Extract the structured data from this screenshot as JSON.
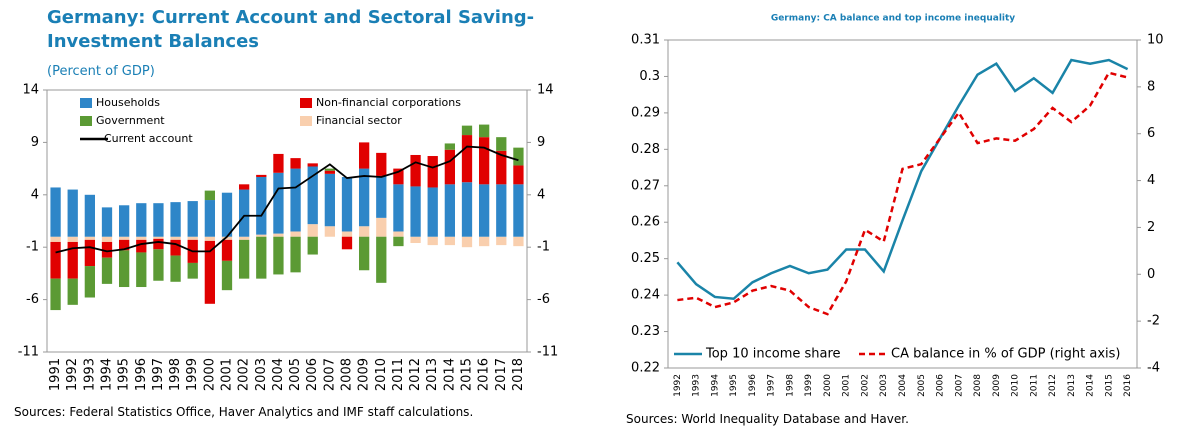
{
  "chart_data": [
    {
      "type": "bar",
      "stacked": true,
      "title": "Germany: Current Account and Sectoral Saving-Investment Balances",
      "subtitle": "(Percent of GDP)",
      "source": "Sources: Federal Statistics Office, Haver Analytics and IMF staff calculations.",
      "categories": [
        "1991",
        "1992",
        "1993",
        "1994",
        "1995",
        "1996",
        "1997",
        "1998",
        "1999",
        "2000",
        "2001",
        "2002",
        "2003",
        "2004",
        "2005",
        "2006",
        "2007",
        "2008",
        "2009",
        "2010",
        "2011",
        "2012",
        "2013",
        "2014",
        "2015",
        "2016",
        "2017",
        "2018"
      ],
      "series": [
        {
          "name": "Households",
          "color": "#2e86c8",
          "values": [
            4.7,
            4.5,
            4.0,
            2.8,
            3.0,
            3.2,
            3.2,
            3.3,
            3.4,
            3.5,
            4.2,
            4.5,
            5.5,
            5.8,
            6.0,
            5.5,
            5.0,
            5.2,
            5.5,
            4.0,
            4.5,
            4.8,
            4.7,
            5.0,
            5.2,
            5.0,
            5.0,
            5.0
          ]
        },
        {
          "name": "Non-financial corporations",
          "color": "#e00000",
          "values": [
            -3.5,
            -3.5,
            -2.5,
            -1.5,
            -1.0,
            -1.2,
            -1.0,
            -1.5,
            -2.2,
            -6.0,
            -2.0,
            0.5,
            0.2,
            1.8,
            1.0,
            0.3,
            0.3,
            -1.2,
            2.5,
            2.2,
            1.5,
            3.0,
            3.0,
            3.3,
            4.5,
            4.5,
            3.2,
            1.8
          ]
        },
        {
          "name": "Government",
          "color": "#5b9a34",
          "values": [
            -3.0,
            -2.5,
            -3.0,
            -2.5,
            -3.5,
            -3.3,
            -3.0,
            -2.5,
            -1.5,
            0.9,
            -2.8,
            -3.7,
            -4.0,
            -3.6,
            -3.4,
            -1.7,
            0.2,
            0.0,
            -3.2,
            -4.4,
            -0.9,
            0.0,
            0.0,
            0.6,
            0.9,
            1.2,
            1.3,
            1.7
          ]
        },
        {
          "name": "Financial sector",
          "color": "#f9cfae",
          "values": [
            -0.5,
            -0.5,
            -0.3,
            -0.5,
            -0.3,
            -0.3,
            -0.2,
            -0.3,
            -0.3,
            -0.4,
            -0.3,
            -0.3,
            0.2,
            0.3,
            0.5,
            1.2,
            1.0,
            0.5,
            1.0,
            1.8,
            0.5,
            -0.6,
            -0.8,
            -0.8,
            -1.0,
            -0.9,
            -0.8,
            -0.9
          ]
        },
        {
          "name": "Current account",
          "color": "#000000",
          "type": "line",
          "values": [
            -1.5,
            -1.1,
            -1.0,
            -1.4,
            -1.2,
            -0.7,
            -0.5,
            -0.7,
            -1.4,
            -1.4,
            0.0,
            2.0,
            2.0,
            4.6,
            4.7,
            5.8,
            6.9,
            5.6,
            5.8,
            5.7,
            6.2,
            7.1,
            6.6,
            7.2,
            8.6,
            8.5,
            7.8,
            7.3
          ]
        }
      ],
      "ylim": [
        -11,
        14
      ],
      "yticks": [
        -11,
        -6,
        -1,
        4,
        9,
        14
      ],
      "y2lim": [
        -11,
        14
      ],
      "y2ticks": [
        -11,
        -6,
        -1,
        4,
        9,
        14
      ],
      "legend": "upper left"
    },
    {
      "type": "line",
      "title": "Germany: CA balance and top income inequality",
      "source": "Sources: World Inequality Database and Haver.",
      "categories": [
        "1992",
        "1993",
        "1994",
        "1995",
        "1996",
        "1997",
        "1998",
        "1999",
        "2000",
        "2001",
        "2002",
        "2003",
        "2004",
        "2005",
        "2006",
        "2007",
        "2008",
        "2009",
        "2010",
        "2011",
        "2012",
        "2013",
        "2014",
        "2015",
        "2016"
      ],
      "series": [
        {
          "name": "Top 10 income share",
          "color": "#1a84a8",
          "values": [
            0.249,
            0.243,
            0.2395,
            0.239,
            0.2435,
            0.246,
            0.248,
            0.246,
            0.247,
            0.2525,
            0.2525,
            0.2465,
            0.2605,
            0.274,
            0.283,
            0.292,
            0.3005,
            0.3035,
            0.296,
            0.2995,
            0.2955,
            0.3045,
            0.3035,
            0.3045,
            0.302
          ]
        },
        {
          "name": "CA balance in % of GDP (right axis)",
          "color": "#e00000",
          "axis": "y2",
          "dash": true,
          "values": [
            -1.1,
            -1.0,
            -1.4,
            -1.2,
            -0.7,
            -0.5,
            -0.7,
            -1.4,
            -1.7,
            -0.3,
            1.9,
            1.4,
            4.5,
            4.7,
            5.8,
            6.9,
            5.6,
            5.8,
            5.7,
            6.2,
            7.1,
            6.5,
            7.2,
            8.6,
            8.4
          ]
        }
      ],
      "ylim": [
        0.22,
        0.31
      ],
      "yticks": [
        0.22,
        0.23,
        0.24,
        0.25,
        0.26,
        0.27,
        0.28,
        0.29,
        0.3,
        0.31
      ],
      "y2lim": [
        -4,
        10
      ],
      "y2ticks": [
        -4,
        -2,
        0,
        2,
        4,
        6,
        8,
        10
      ],
      "legend": "lower left"
    }
  ]
}
